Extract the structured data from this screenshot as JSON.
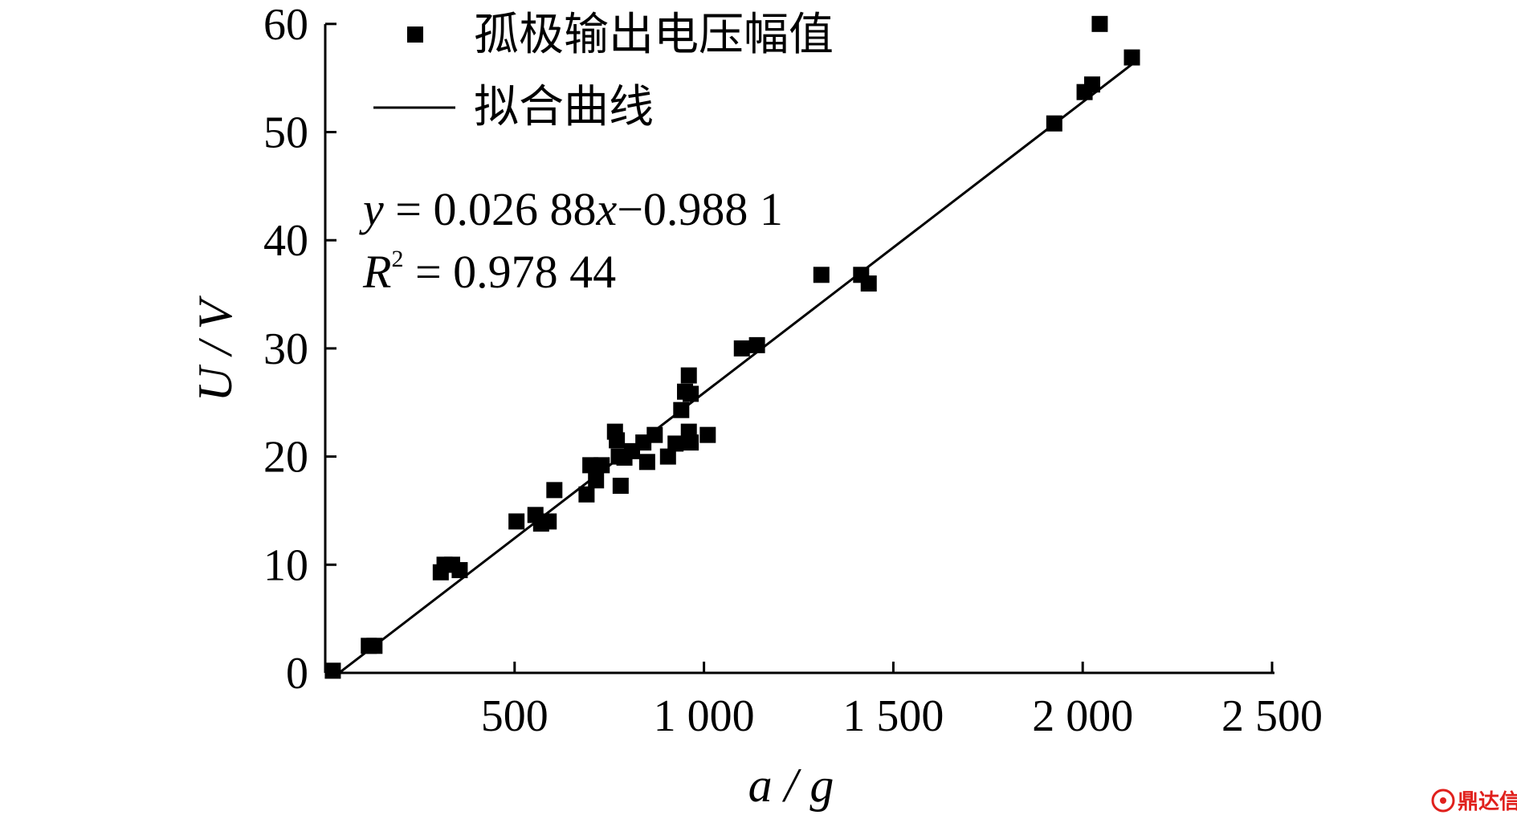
{
  "chart_data": {
    "type": "scatter",
    "title": "",
    "xlabel": "a / g",
    "ylabel": "U / V",
    "xlim": [
      0,
      2500
    ],
    "ylim": [
      0,
      60
    ],
    "x_ticks": [
      500,
      1000,
      1500,
      2000,
      2500
    ],
    "x_tick_labels": [
      "500",
      "1 000",
      "1 500",
      "2 000",
      "2 500"
    ],
    "y_ticks": [
      0,
      10,
      20,
      30,
      40,
      50,
      60
    ],
    "y_tick_labels": [
      "0",
      "10",
      "20",
      "30",
      "40",
      "50",
      "60"
    ],
    "grid": false,
    "legend_position": "top-left",
    "series": [
      {
        "name": "孤极输出电压幅值",
        "kind": "scatter",
        "marker": "square",
        "color": "#000000",
        "points": [
          [
            20,
            0.2
          ],
          [
            115,
            2.5
          ],
          [
            130,
            2.5
          ],
          [
            305,
            9.3
          ],
          [
            315,
            10.0
          ],
          [
            335,
            10.0
          ],
          [
            355,
            9.5
          ],
          [
            505,
            14.0
          ],
          [
            555,
            14.6
          ],
          [
            570,
            13.8
          ],
          [
            590,
            14.0
          ],
          [
            605,
            16.9
          ],
          [
            690,
            16.5
          ],
          [
            700,
            19.2
          ],
          [
            715,
            17.8
          ],
          [
            730,
            19.2
          ],
          [
            765,
            22.3
          ],
          [
            770,
            21.5
          ],
          [
            775,
            20.0
          ],
          [
            780,
            17.3
          ],
          [
            790,
            19.9
          ],
          [
            810,
            20.5
          ],
          [
            840,
            21.3
          ],
          [
            850,
            19.5
          ],
          [
            870,
            22.0
          ],
          [
            905,
            20.0
          ],
          [
            925,
            21.2
          ],
          [
            940,
            24.3
          ],
          [
            950,
            26.0
          ],
          [
            960,
            22.3
          ],
          [
            960,
            27.5
          ],
          [
            965,
            25.8
          ],
          [
            965,
            21.3
          ],
          [
            1010,
            22.0
          ],
          [
            1100,
            30.0
          ],
          [
            1140,
            30.3
          ],
          [
            1310,
            36.8
          ],
          [
            1415,
            36.8
          ],
          [
            1435,
            36.0
          ],
          [
            1925,
            50.8
          ],
          [
            2005,
            53.7
          ],
          [
            2025,
            54.4
          ],
          [
            2045,
            60.0
          ],
          [
            2130,
            56.9
          ]
        ]
      },
      {
        "name": "拟合曲线",
        "kind": "line",
        "color": "#000000",
        "slope": 0.02688,
        "intercept": -0.9881,
        "x_range": [
          36.8,
          2130
        ]
      }
    ],
    "annotations": {
      "equation_y": "y",
      "equation_rest": " = 0.026 88",
      "equation_x": "x",
      "equation_tail": "−0.988 1",
      "r2_var": "R",
      "r2_sup": "2",
      "r2_value": " = 0.978 44"
    }
  },
  "watermark": {
    "text": "鼎达信",
    "color": "#e0201c"
  }
}
